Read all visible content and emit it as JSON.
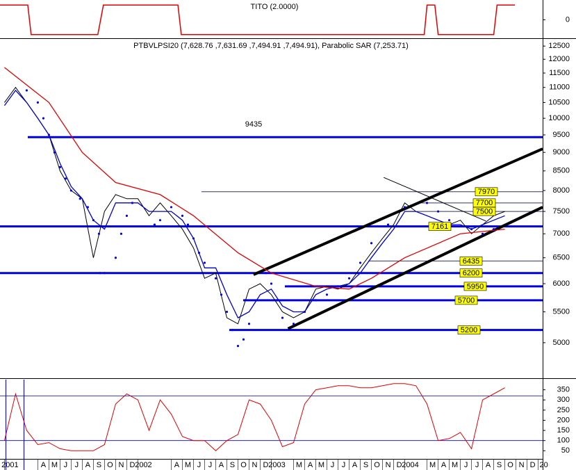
{
  "chart_data": [
    {
      "type": "line",
      "title": "TITO (2.0000)",
      "color": "#e00000",
      "x": [
        -0.4,
        2.1,
        2.4,
        8.4,
        8.9,
        15.6,
        15.9,
        37.75,
        38,
        38.7,
        39,
        44,
        44.3,
        45.9
      ],
      "values": [
        1,
        1,
        -1,
        -1,
        1,
        1,
        -1,
        -1,
        1,
        1,
        -1,
        -1,
        1,
        1
      ],
      "xlim": [
        -0.4,
        48.4
      ],
      "ylim": [
        -1.25,
        1.25
      ],
      "yticks": [
        0
      ]
    },
    {
      "type": "line",
      "title": "PTBVLPSI20 (7,628.76 ,7,631.69 ,7,494.91 ,7,494.91), Parabolic SAR (7,253.71)",
      "log_scale": true,
      "xlim": [
        -0.4,
        48.4
      ],
      "ylim": [
        4490,
        12750
      ],
      "yticks": [
        12500,
        12000,
        11500,
        11000,
        10500,
        10000,
        9500,
        9000,
        8500,
        8000,
        7500,
        7000,
        6500,
        6000,
        5500,
        5000
      ],
      "series": [
        {
          "style": "line",
          "color": "#000000",
          "width": 1,
          "x": [
            0,
            1,
            2,
            3,
            4,
            5,
            6,
            7,
            8,
            9,
            10,
            11,
            12,
            13,
            14,
            15,
            16,
            17,
            18,
            19,
            20,
            21,
            22,
            23,
            24,
            25,
            26,
            27,
            28,
            29,
            30,
            31,
            32,
            33,
            34,
            35,
            36,
            37,
            38,
            39,
            40,
            41,
            42,
            43,
            44,
            45
          ],
          "values": [
            10500,
            11000,
            10500,
            10000,
            9500,
            8500,
            8000,
            7800,
            6500,
            7500,
            7900,
            7800,
            7800,
            7400,
            7700,
            7400,
            7100,
            6700,
            6100,
            6200,
            5400,
            5300,
            5900,
            6000,
            5800,
            5500,
            5400,
            5500,
            5900,
            5950,
            5900,
            6000,
            6300,
            6600,
            6900,
            7200,
            7700,
            7500,
            7400,
            7300,
            7200,
            7300,
            7000,
            7200,
            7400,
            7500
          ]
        },
        {
          "style": "line",
          "color": "#0000cc",
          "width": 1.3,
          "x": [
            0,
            1,
            2,
            3,
            4,
            5,
            6,
            7,
            8,
            9,
            10,
            11,
            12,
            13,
            14,
            15,
            16,
            17,
            18,
            19,
            20,
            21,
            22,
            23,
            24,
            25,
            26,
            27,
            28,
            29,
            30,
            31,
            32,
            33,
            34,
            35,
            36,
            37,
            38,
            39,
            40,
            41,
            42,
            43,
            44,
            45
          ],
          "values": [
            10400,
            10900,
            10500,
            10000,
            9500,
            8700,
            8100,
            7800,
            7300,
            7100,
            7700,
            7700,
            7700,
            7500,
            7500,
            7500,
            7300,
            6900,
            6300,
            6300,
            5800,
            5400,
            5500,
            5800,
            5900,
            5600,
            5500,
            5500,
            5800,
            5900,
            5950,
            6000,
            6200,
            6500,
            6800,
            7100,
            7500,
            7500,
            7400,
            7300,
            7200,
            7200,
            7100,
            7200,
            7300,
            7400
          ]
        },
        {
          "style": "line",
          "color": "#e00000",
          "width": 1.3,
          "x": [
            0,
            4,
            7,
            10,
            14,
            17,
            21,
            24,
            28,
            31,
            33,
            36,
            41,
            45
          ],
          "values": [
            11700,
            10500,
            9000,
            8200,
            7900,
            7400,
            6600,
            6200,
            5950,
            5900,
            6100,
            6500,
            7000,
            7100
          ]
        },
        {
          "style": "dots",
          "color": "#0000ff",
          "x": [
            2,
            3,
            3.5,
            4,
            4.5,
            5,
            5.5,
            6,
            6.8,
            7.5,
            8,
            8.5,
            8.6,
            9,
            10,
            10.5,
            11,
            11.5,
            13.5,
            14,
            15,
            16,
            16.5,
            17,
            17.5,
            18,
            19,
            19.5,
            20,
            20.5,
            21,
            21.5,
            22,
            23.5,
            24,
            24.5,
            25,
            26,
            27,
            28,
            29,
            30,
            31,
            32,
            33,
            34.5,
            36,
            38,
            39,
            40,
            42,
            43,
            44
          ],
          "values": [
            10900,
            10500,
            10000,
            9500,
            9000,
            8600,
            8300,
            8000,
            7800,
            7600,
            7300,
            7000,
            6200,
            6200,
            6500,
            7000,
            7400,
            7700,
            7200,
            7300,
            7600,
            7400,
            7200,
            6900,
            6600,
            6400,
            6100,
            5800,
            5500,
            5200,
            4950,
            5050,
            5300,
            6200,
            6000,
            5700,
            5400,
            5300,
            5500,
            5700,
            5800,
            5950,
            6100,
            6400,
            6800,
            7200,
            7600,
            7700,
            7500,
            7300,
            7100,
            7000,
            7100
          ]
        }
      ],
      "levels": [
        {
          "value": 9435,
          "width": 3
        },
        {
          "value": 7970,
          "width": 1
        },
        {
          "value": 7700,
          "width": 1
        },
        {
          "value": 7500,
          "width": 1
        },
        {
          "value": 7161,
          "width": 3
        },
        {
          "value": 6435,
          "width": 1
        },
        {
          "value": 6200,
          "width": 3
        },
        {
          "value": 5950,
          "width": 3
        },
        {
          "value": 5700,
          "width": 3
        },
        {
          "value": 5200,
          "width": 3
        }
      ],
      "trend_lines": [
        {
          "x": [
            22.4,
            48.4
          ],
          "values": [
            6170,
            9100
          ],
          "width": 4
        },
        {
          "x": [
            25.5,
            48.4
          ],
          "values": [
            5220,
            7600
          ],
          "width": 4
        },
        {
          "x": [
            34.1,
            43.3
          ],
          "values": [
            8330,
            7280
          ],
          "width": 1
        }
      ]
    },
    {
      "type": "line",
      "color": "#e00000",
      "xlim": [
        -0.4,
        48.4
      ],
      "ylim": [
        10,
        400
      ],
      "yticks": [
        350,
        300,
        250,
        200,
        150,
        100,
        50
      ],
      "ref_lines": [
        320,
        100
      ],
      "values": [
        100,
        330,
        150,
        80,
        90,
        60,
        50,
        50,
        50,
        80,
        280,
        330,
        300,
        150,
        300,
        230,
        120,
        100,
        100,
        50,
        100,
        130,
        300,
        280,
        200,
        70,
        90,
        280,
        350,
        360,
        370,
        370,
        360,
        360,
        370,
        380,
        380,
        370,
        280,
        100,
        110,
        140,
        60,
        300,
        330,
        360
      ],
      "xticks": [
        {
          "value": 0,
          "label": "2001"
        },
        {
          "value": 3,
          "label": "A"
        },
        {
          "value": 4,
          "label": "M"
        },
        {
          "value": 5,
          "label": "J"
        },
        {
          "value": 6,
          "label": "J"
        },
        {
          "value": 7,
          "label": "A"
        },
        {
          "value": 8,
          "label": "S"
        },
        {
          "value": 9,
          "label": "O"
        },
        {
          "value": 10,
          "label": "N"
        },
        {
          "value": 11,
          "label": "D"
        },
        {
          "value": 12,
          "label": "2002"
        },
        {
          "value": 15,
          "label": "A"
        },
        {
          "value": 16,
          "label": "M"
        },
        {
          "value": 17,
          "label": "J"
        },
        {
          "value": 18,
          "label": "J"
        },
        {
          "value": 19,
          "label": "A"
        },
        {
          "value": 20,
          "label": "S"
        },
        {
          "value": 21,
          "label": "O"
        },
        {
          "value": 22,
          "label": "N"
        },
        {
          "value": 23,
          "label": "D"
        },
        {
          "value": 24,
          "label": "2003"
        },
        {
          "value": 26,
          "label": "M"
        },
        {
          "value": 27,
          "label": "A"
        },
        {
          "value": 28,
          "label": "M"
        },
        {
          "value": 29,
          "label": "J"
        },
        {
          "value": 30,
          "label": "J"
        },
        {
          "value": 31,
          "label": "A"
        },
        {
          "value": 32,
          "label": "S"
        },
        {
          "value": 33,
          "label": "O"
        },
        {
          "value": 34,
          "label": "N"
        },
        {
          "value": 35,
          "label": "D"
        },
        {
          "value": 36,
          "label": "2004"
        },
        {
          "value": 38,
          "label": "M"
        },
        {
          "value": 39,
          "label": "A"
        },
        {
          "value": 40,
          "label": "M"
        },
        {
          "value": 41,
          "label": "J"
        },
        {
          "value": 42,
          "label": "J"
        },
        {
          "value": 43,
          "label": "A"
        },
        {
          "value": 44,
          "label": "S"
        },
        {
          "value": 45,
          "label": "O"
        },
        {
          "value": 46,
          "label": "N"
        },
        {
          "value": 47,
          "label": "D"
        },
        {
          "value": 48,
          "label": "20"
        }
      ]
    }
  ]
}
